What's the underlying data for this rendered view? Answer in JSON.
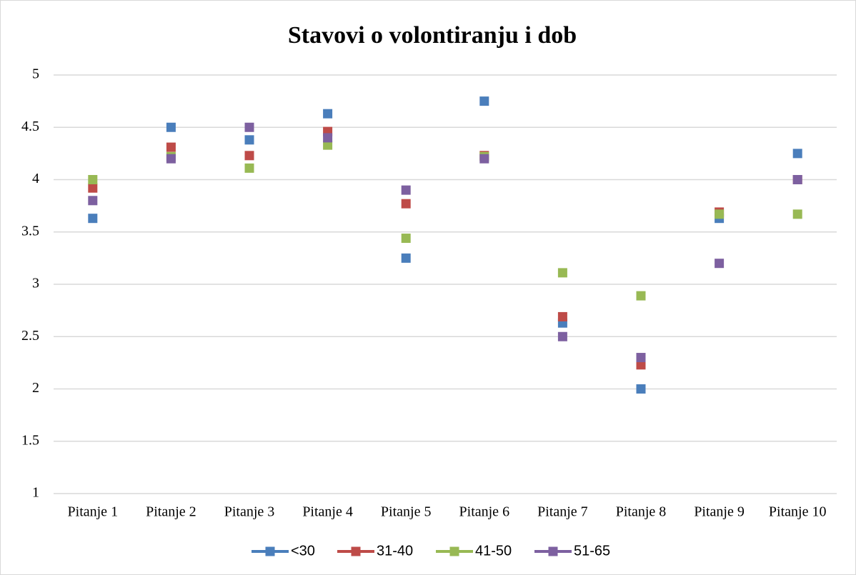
{
  "chart_data": {
    "type": "line",
    "title": "Stavovi o volontiranju i dob",
    "categories": [
      "Pitanje 1",
      "Pitanje 2",
      "Pitanje 3",
      "Pitanje 4",
      "Pitanje 5",
      "Pitanje 6",
      "Pitanje 7",
      "Pitanje 8",
      "Pitanje 9",
      "Pitanje 10"
    ],
    "series": [
      {
        "name": "<30",
        "color": "#4a7ebb",
        "values": [
          3.63,
          4.5,
          4.38,
          4.63,
          3.25,
          4.75,
          2.63,
          2.0,
          3.63,
          4.25
        ]
      },
      {
        "name": "31-40",
        "color": "#be4b48",
        "values": [
          3.92,
          4.31,
          4.23,
          4.46,
          3.77,
          4.23,
          2.69,
          2.23,
          3.69,
          4.0
        ]
      },
      {
        "name": "41-50",
        "color": "#98b954",
        "values": [
          4.0,
          4.22,
          4.11,
          4.33,
          3.44,
          4.22,
          3.11,
          2.89,
          3.67,
          3.67
        ]
      },
      {
        "name": "51-65",
        "color": "#7d60a0",
        "values": [
          3.8,
          4.2,
          4.5,
          4.4,
          3.9,
          4.2,
          2.5,
          2.3,
          3.2,
          4.0
        ]
      }
    ],
    "ylim": [
      1,
      5
    ],
    "yticks": [
      1,
      1.5,
      2,
      2.5,
      3,
      3.5,
      4,
      4.5,
      5
    ],
    "grid": true,
    "legend": "bottom"
  }
}
